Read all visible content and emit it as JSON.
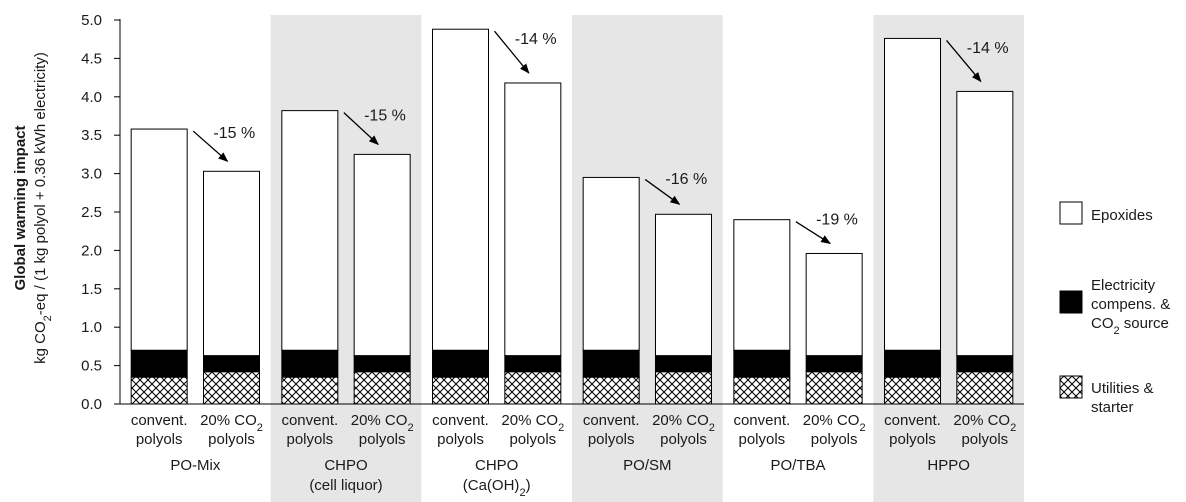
{
  "chart_data": {
    "type": "bar",
    "stacked": true,
    "ylabel_line1": "Global warming impact",
    "ylabel_line2": {
      "a": "kg CO",
      "sub": "2",
      "b": "-eq / (1 kg polyol + 0.36 kWh electricity)"
    },
    "ylim": [
      0,
      5.0
    ],
    "yticks": [
      "0.0",
      "0.5",
      "1.0",
      "1.5",
      "2.0",
      "2.5",
      "3.0",
      "3.5",
      "4.0",
      "4.5",
      "5.0"
    ],
    "groups": [
      {
        "line1": "PO-Mix",
        "line2": null,
        "shaded": false,
        "change": "-15 %"
      },
      {
        "line1": "CHPO",
        "line2": {
          "a": "(cell liquor)",
          "sub": "",
          "b": ""
        },
        "shaded": true,
        "change": "-15 %"
      },
      {
        "line1": "CHPO",
        "line2": {
          "a": "(Ca(OH)",
          "sub": "2",
          "b": ")"
        },
        "shaded": false,
        "change": "-14 %"
      },
      {
        "line1": "PO/SM",
        "line2": null,
        "shaded": true,
        "change": "-16 %"
      },
      {
        "line1": "PO/TBA",
        "line2": null,
        "shaded": false,
        "change": "-19 %"
      },
      {
        "line1": "HPPO",
        "line2": null,
        "shaded": true,
        "change": "-14 %"
      }
    ],
    "bar_labels": {
      "convent": {
        "line1": "convent.",
        "line2": "polyols"
      },
      "co2": {
        "line1a": "20% CO",
        "line1sub": "2",
        "line2": "polyols"
      }
    },
    "totals": {
      "convent": [
        3.58,
        3.82,
        4.88,
        2.95,
        2.4,
        4.76
      ],
      "co2": [
        3.03,
        3.25,
        4.18,
        2.47,
        1.96,
        4.07
      ]
    },
    "utilities": {
      "convent": 0.35,
      "co2": 0.42
    },
    "electricity": {
      "convent": 0.35,
      "co2": 0.21
    },
    "series": [
      {
        "name": "Epoxides",
        "color": "#ffffff",
        "pattern": "none"
      },
      {
        "name_lines": [
          "Electricity",
          "compens. &"
        ],
        "name_last": {
          "a": "CO",
          "sub": "2",
          "b": " source"
        },
        "color": "#000000",
        "pattern": "solid"
      },
      {
        "name_lines": [
          "Utilities &",
          "starter"
        ],
        "color": "#ffffff",
        "pattern": "crosshatch"
      }
    ],
    "grid": false,
    "legend_position": "right",
    "shade_color": "#e6e6e6"
  }
}
